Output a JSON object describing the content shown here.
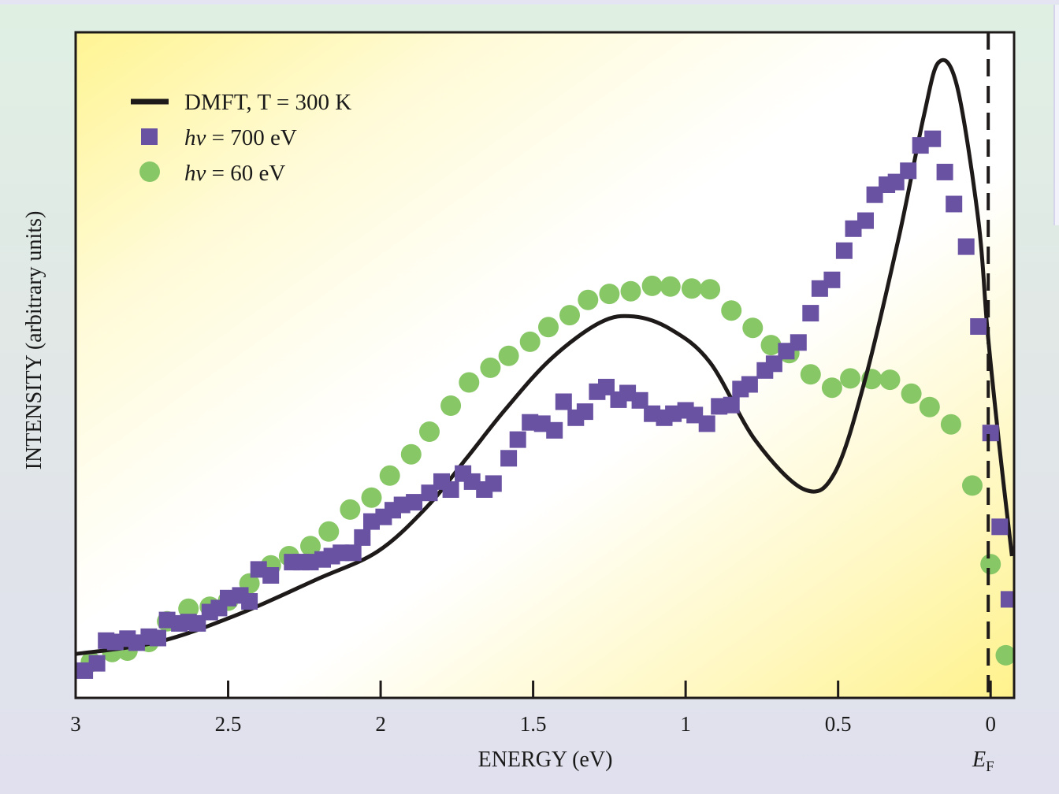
{
  "chart_data": {
    "type": "scatter",
    "title": "",
    "xlabel": "ENERGY (eV)",
    "ylabel": "INTENSITY (arbitrary units)",
    "xlim": [
      3,
      -0.077
    ],
    "ylim": [
      0,
      1
    ],
    "x_reversed": true,
    "grid": false,
    "x_ticks": [
      {
        "value": 3,
        "label": "3"
      },
      {
        "value": 2.5,
        "label": "2.5"
      },
      {
        "value": 2,
        "label": "2"
      },
      {
        "value": 1.5,
        "label": "1.5"
      },
      {
        "value": 1,
        "label": "1"
      },
      {
        "value": 0.5,
        "label": "0.5"
      },
      {
        "value": 0,
        "label": "0"
      }
    ],
    "y_ticks": [],
    "fermi_level": {
      "value": 0,
      "label_main": "E",
      "label_sub": "F",
      "style": "dashed"
    },
    "legend_position": "top-left",
    "colors": {
      "dmft": "#1e1a1a",
      "hv700": "#6a52a3",
      "hv60": "#88c766"
    },
    "series": [
      {
        "name": "DMFT, T = 300 K",
        "legend_label": "DMFT, T = 300 K",
        "kind": "line",
        "points": [
          [
            3.0,
            0.066
          ],
          [
            2.73,
            0.084
          ],
          [
            2.47,
            0.125
          ],
          [
            2.21,
            0.178
          ],
          [
            2.01,
            0.22
          ],
          [
            1.85,
            0.286
          ],
          [
            1.72,
            0.359
          ],
          [
            1.59,
            0.434
          ],
          [
            1.44,
            0.51
          ],
          [
            1.28,
            0.564
          ],
          [
            1.17,
            0.573
          ],
          [
            1.05,
            0.554
          ],
          [
            0.92,
            0.504
          ],
          [
            0.77,
            0.386
          ],
          [
            0.61,
            0.313
          ],
          [
            0.51,
            0.339
          ],
          [
            0.41,
            0.481
          ],
          [
            0.3,
            0.694
          ],
          [
            0.22,
            0.872
          ],
          [
            0.17,
            0.955
          ],
          [
            0.11,
            0.919
          ],
          [
            0.04,
            0.717
          ],
          [
            0.01,
            0.551
          ],
          [
            -0.03,
            0.373
          ],
          [
            -0.07,
            0.213
          ]
        ]
      },
      {
        "name": "hν = 700 eV",
        "legend_label_italic": "hν",
        "legend_label_rest": " = 700 eV",
        "kind": "square",
        "points": [
          [
            2.97,
            0.041
          ],
          [
            2.93,
            0.052
          ],
          [
            2.9,
            0.086
          ],
          [
            2.87,
            0.084
          ],
          [
            2.83,
            0.089
          ],
          [
            2.8,
            0.083
          ],
          [
            2.76,
            0.092
          ],
          [
            2.73,
            0.09
          ],
          [
            2.7,
            0.117
          ],
          [
            2.66,
            0.112
          ],
          [
            2.63,
            0.114
          ],
          [
            2.6,
            0.112
          ],
          [
            2.56,
            0.129
          ],
          [
            2.53,
            0.135
          ],
          [
            2.5,
            0.15
          ],
          [
            2.46,
            0.154
          ],
          [
            2.43,
            0.145
          ],
          [
            2.4,
            0.193
          ],
          [
            2.36,
            0.184
          ],
          [
            2.29,
            0.204
          ],
          [
            2.26,
            0.204
          ],
          [
            2.23,
            0.204
          ],
          [
            2.19,
            0.208
          ],
          [
            2.16,
            0.213
          ],
          [
            2.13,
            0.218
          ],
          [
            2.09,
            0.218
          ],
          [
            2.06,
            0.241
          ],
          [
            2.03,
            0.265
          ],
          [
            1.99,
            0.272
          ],
          [
            1.96,
            0.282
          ],
          [
            1.93,
            0.29
          ],
          [
            1.89,
            0.294
          ],
          [
            1.84,
            0.308
          ],
          [
            1.8,
            0.325
          ],
          [
            1.77,
            0.313
          ],
          [
            1.73,
            0.337
          ],
          [
            1.7,
            0.325
          ],
          [
            1.66,
            0.313
          ],
          [
            1.63,
            0.322
          ],
          [
            1.58,
            0.36
          ],
          [
            1.55,
            0.388
          ],
          [
            1.51,
            0.414
          ],
          [
            1.47,
            0.412
          ],
          [
            1.43,
            0.402
          ],
          [
            1.4,
            0.445
          ],
          [
            1.36,
            0.421
          ],
          [
            1.33,
            0.43
          ],
          [
            1.29,
            0.46
          ],
          [
            1.26,
            0.467
          ],
          [
            1.22,
            0.448
          ],
          [
            1.19,
            0.458
          ],
          [
            1.15,
            0.447
          ],
          [
            1.11,
            0.427
          ],
          [
            1.07,
            0.421
          ],
          [
            1.04,
            0.427
          ],
          [
            1.0,
            0.432
          ],
          [
            0.97,
            0.425
          ],
          [
            0.93,
            0.412
          ],
          [
            0.89,
            0.438
          ],
          [
            0.85,
            0.44
          ],
          [
            0.82,
            0.464
          ],
          [
            0.79,
            0.471
          ],
          [
            0.74,
            0.492
          ],
          [
            0.71,
            0.502
          ],
          [
            0.67,
            0.521
          ],
          [
            0.63,
            0.534
          ],
          [
            0.59,
            0.578
          ],
          [
            0.56,
            0.615
          ],
          [
            0.52,
            0.628
          ],
          [
            0.48,
            0.672
          ],
          [
            0.45,
            0.705
          ],
          [
            0.41,
            0.717
          ],
          [
            0.38,
            0.756
          ],
          [
            0.34,
            0.771
          ],
          [
            0.31,
            0.775
          ],
          [
            0.27,
            0.792
          ],
          [
            0.23,
            0.83
          ],
          [
            0.19,
            0.84
          ],
          [
            0.15,
            0.79
          ],
          [
            0.12,
            0.742
          ],
          [
            0.08,
            0.678
          ],
          [
            0.04,
            0.558
          ],
          [
            0.0,
            0.398
          ],
          [
            -0.03,
            0.257
          ],
          [
            -0.06,
            0.148
          ]
        ]
      },
      {
        "name": "hν = 60 eV",
        "legend_label_italic": "hν",
        "legend_label_rest": " = 60 eV",
        "kind": "circle",
        "points": [
          [
            2.95,
            0.054
          ],
          [
            2.88,
            0.069
          ],
          [
            2.83,
            0.071
          ],
          [
            2.76,
            0.084
          ],
          [
            2.7,
            0.115
          ],
          [
            2.63,
            0.134
          ],
          [
            2.56,
            0.137
          ],
          [
            2.5,
            0.146
          ],
          [
            2.43,
            0.172
          ],
          [
            2.36,
            0.199
          ],
          [
            2.3,
            0.213
          ],
          [
            2.23,
            0.228
          ],
          [
            2.17,
            0.25
          ],
          [
            2.1,
            0.283
          ],
          [
            2.03,
            0.301
          ],
          [
            1.97,
            0.334
          ],
          [
            1.9,
            0.366
          ],
          [
            1.84,
            0.4
          ],
          [
            1.77,
            0.439
          ],
          [
            1.71,
            0.474
          ],
          [
            1.64,
            0.496
          ],
          [
            1.58,
            0.514
          ],
          [
            1.51,
            0.535
          ],
          [
            1.45,
            0.557
          ],
          [
            1.38,
            0.575
          ],
          [
            1.32,
            0.598
          ],
          [
            1.25,
            0.607
          ],
          [
            1.18,
            0.611
          ],
          [
            1.11,
            0.619
          ],
          [
            1.05,
            0.618
          ],
          [
            0.98,
            0.615
          ],
          [
            0.92,
            0.614
          ],
          [
            0.85,
            0.582
          ],
          [
            0.78,
            0.556
          ],
          [
            0.72,
            0.53
          ],
          [
            0.66,
            0.518
          ],
          [
            0.59,
            0.486
          ],
          [
            0.52,
            0.466
          ],
          [
            0.46,
            0.48
          ],
          [
            0.39,
            0.479
          ],
          [
            0.33,
            0.478
          ],
          [
            0.26,
            0.457
          ],
          [
            0.2,
            0.437
          ],
          [
            0.13,
            0.411
          ],
          [
            0.06,
            0.319
          ],
          [
            0.0,
            0.201
          ],
          [
            -0.05,
            0.064
          ]
        ]
      }
    ]
  }
}
